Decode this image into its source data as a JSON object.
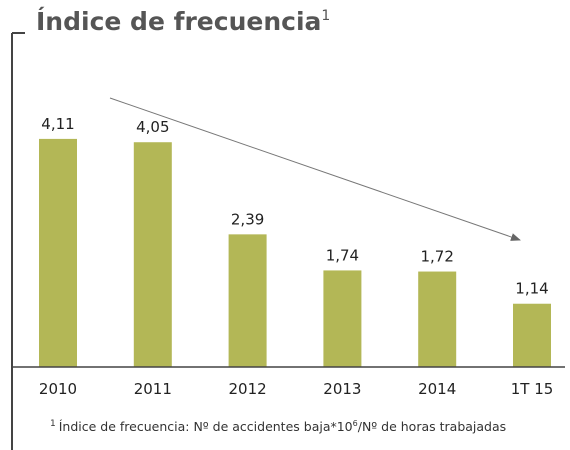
{
  "chart_data": {
    "type": "bar",
    "title": "Índice de frecuencia",
    "title_superscript": "1",
    "categories": [
      "2010",
      "2011",
      "2012",
      "2013",
      "2014",
      "1T 15"
    ],
    "values": [
      4.11,
      4.05,
      2.39,
      1.74,
      1.72,
      1.14
    ],
    "value_labels": [
      "4,11",
      "4,05",
      "2,39",
      "1,74",
      "1,72",
      "1,14"
    ],
    "color": "#b3b756",
    "footnote": {
      "marker": "1",
      "text": "Índice de frecuencia: Nº de accidentes baja*10",
      "superscript": "6",
      "text_end": "/Nº de horas trabajadas"
    }
  }
}
